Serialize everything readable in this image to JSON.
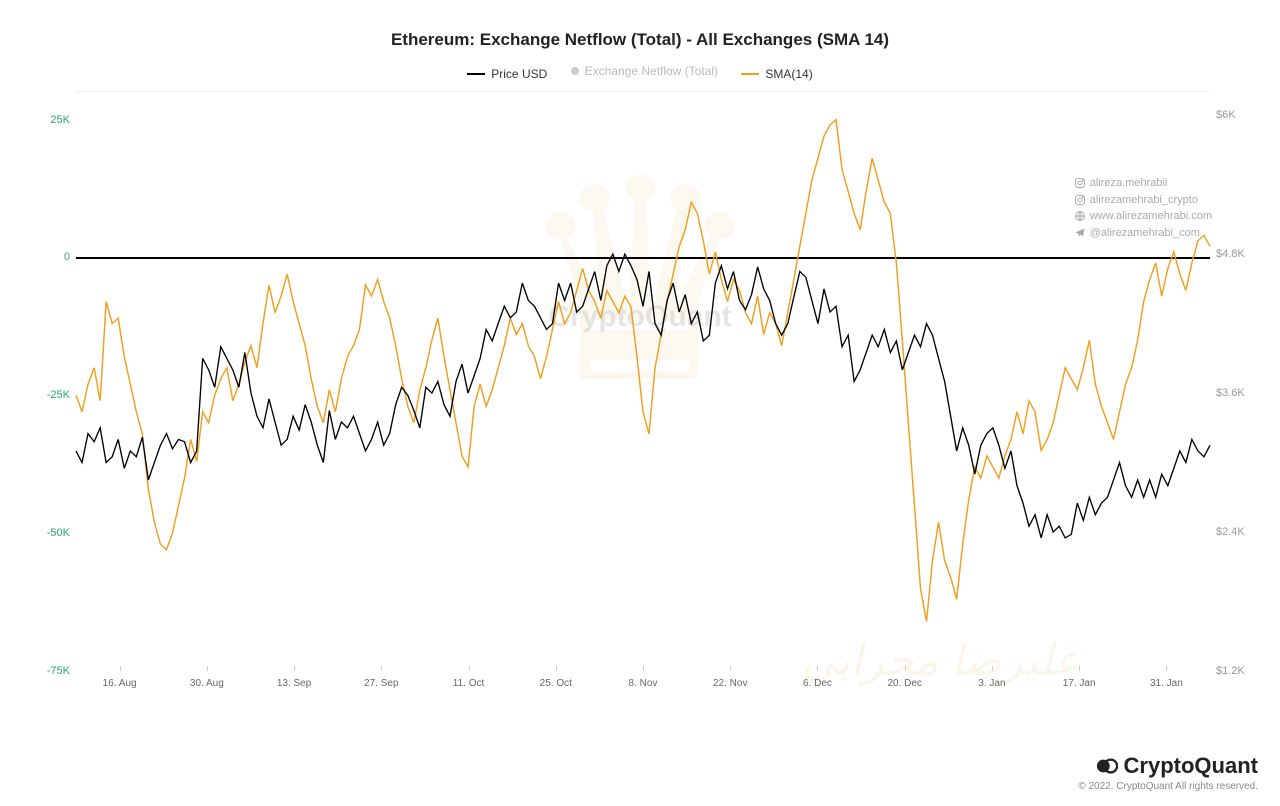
{
  "title": "Ethereum: Exchange Netflow (Total) - All Exchanges (SMA 14)",
  "legend": {
    "price": {
      "label": "Price USD",
      "color": "#000000"
    },
    "netflow": {
      "label": "Exchange Netflow (Total)",
      "color": "#cccccc"
    },
    "sma": {
      "label": "SMA(14)",
      "color": "#f0a020"
    }
  },
  "chart": {
    "type": "line",
    "background_color": "#ffffff",
    "grid_color": "#eeeeee",
    "left_axis": {
      "min": -75000,
      "max": 30000,
      "ticks": [
        {
          "v": 25000,
          "label": "25K",
          "color": "#2aa876"
        },
        {
          "v": 0,
          "label": "0",
          "color": "#2aa876"
        },
        {
          "v": -25000,
          "label": "-25K",
          "color": "#2aa876"
        },
        {
          "v": -50000,
          "label": "-50K",
          "color": "#2aa876"
        },
        {
          "v": -75000,
          "label": "-75K",
          "color": "#2aa876"
        }
      ]
    },
    "right_axis": {
      "min": 1200,
      "max": 6200,
      "ticks": [
        {
          "v": 6000,
          "label": "$6K"
        },
        {
          "v": 4800,
          "label": "$4.8K"
        },
        {
          "v": 3600,
          "label": "$3.6K"
        },
        {
          "v": 2400,
          "label": "$2.4K"
        },
        {
          "v": 1200,
          "label": "$1.2K"
        }
      ]
    },
    "x_labels": [
      "16. Aug",
      "30. Aug",
      "13. Sep",
      "27. Sep",
      "11. Oct",
      "25. Oct",
      "8. Nov",
      "22. Nov",
      "6. Dec",
      "20. Dec",
      "3. Jan",
      "17. Jan",
      "31. Jan"
    ],
    "x_domain": [
      0,
      188
    ],
    "zero_line_left_value": 0,
    "series": {
      "price": {
        "axis": "right",
        "color": "#000000",
        "stroke_width": 1.2,
        "data": [
          3100,
          3000,
          3250,
          3180,
          3300,
          3000,
          3050,
          3200,
          2950,
          3100,
          3050,
          3220,
          2850,
          3000,
          3150,
          3250,
          3120,
          3200,
          3180,
          3000,
          3100,
          3900,
          3800,
          3650,
          4000,
          3900,
          3800,
          3650,
          3950,
          3600,
          3400,
          3300,
          3550,
          3350,
          3150,
          3200,
          3400,
          3280,
          3500,
          3350,
          3150,
          3000,
          3450,
          3200,
          3350,
          3300,
          3400,
          3250,
          3100,
          3200,
          3350,
          3150,
          3250,
          3500,
          3650,
          3580,
          3450,
          3300,
          3650,
          3600,
          3700,
          3500,
          3400,
          3700,
          3850,
          3600,
          3750,
          3900,
          4150,
          4050,
          4200,
          4350,
          4250,
          4300,
          4550,
          4400,
          4350,
          4250,
          4150,
          4200,
          4550,
          4400,
          4550,
          4300,
          4350,
          4500,
          4650,
          4400,
          4700,
          4800,
          4650,
          4800,
          4700,
          4580,
          4350,
          4650,
          4200,
          4100,
          4400,
          4550,
          4300,
          4450,
          4200,
          4300,
          4050,
          4100,
          4550,
          4700,
          4500,
          4650,
          4400,
          4320,
          4450,
          4690,
          4500,
          4400,
          4200,
          4100,
          4200,
          4430,
          4650,
          4600,
          4400,
          4200,
          4500,
          4300,
          4350,
          4000,
          4100,
          3700,
          3800,
          3950,
          4100,
          4000,
          4150,
          3950,
          4050,
          3800,
          3950,
          4100,
          4000,
          4200,
          4100,
          3900,
          3700,
          3400,
          3100,
          3300,
          3150,
          2900,
          3150,
          3250,
          3300,
          3150,
          2950,
          3100,
          2800,
          2650,
          2450,
          2550,
          2350,
          2550,
          2400,
          2450,
          2350,
          2380,
          2650,
          2500,
          2700,
          2550,
          2650,
          2700,
          2850,
          3000,
          2800,
          2700,
          2850,
          2700,
          2850,
          2700,
          2900,
          2800,
          2950,
          3100,
          3000,
          3200,
          3100,
          3050,
          3150
        ]
      },
      "sma": {
        "axis": "left",
        "color": "#f0a020",
        "stroke_width": 1.3,
        "data": [
          -25000,
          -28000,
          -23000,
          -20000,
          -26000,
          -8000,
          -12000,
          -11000,
          -18000,
          -23000,
          -28000,
          -32000,
          -42000,
          -48000,
          -52000,
          -53000,
          -50000,
          -45000,
          -40000,
          -33000,
          -37000,
          -28000,
          -30000,
          -25000,
          -22000,
          -20000,
          -26000,
          -23000,
          -19000,
          -16000,
          -20000,
          -12000,
          -5000,
          -10000,
          -7000,
          -3000,
          -8000,
          -12000,
          -16000,
          -22000,
          -27000,
          -30000,
          -24000,
          -28000,
          -22000,
          -18000,
          -16000,
          -13000,
          -5000,
          -7000,
          -4000,
          -8000,
          -11000,
          -16000,
          -22000,
          -27000,
          -30000,
          -24000,
          -20000,
          -15000,
          -11000,
          -18000,
          -24000,
          -30000,
          -36000,
          -38000,
          -27000,
          -23000,
          -27000,
          -24000,
          -20000,
          -16000,
          -11000,
          -14000,
          -12000,
          -16000,
          -18000,
          -22000,
          -18000,
          -13000,
          -8000,
          -12000,
          -10000,
          -6000,
          -2000,
          -6000,
          -8000,
          -11000,
          -6000,
          -8000,
          -10000,
          -7000,
          -9000,
          -18000,
          -28000,
          -32000,
          -20000,
          -14000,
          -8000,
          -3000,
          2000,
          5000,
          10000,
          8000,
          3000,
          -3000,
          1000,
          -4000,
          -8000,
          -4000,
          -6000,
          -10000,
          -12000,
          -7000,
          -14000,
          -10000,
          -12000,
          -16000,
          -10000,
          -4000,
          2000,
          8000,
          14000,
          18000,
          22000,
          24000,
          25000,
          16000,
          12000,
          8000,
          5000,
          12000,
          18000,
          14000,
          10000,
          8000,
          -1000,
          -15000,
          -30000,
          -45000,
          -60000,
          -66000,
          -55000,
          -48000,
          -55000,
          -58000,
          -62000,
          -52000,
          -44000,
          -38000,
          -40000,
          -36000,
          -38000,
          -40000,
          -36000,
          -33000,
          -28000,
          -32000,
          -26000,
          -28000,
          -35000,
          -33000,
          -30000,
          -25000,
          -20000,
          -22000,
          -24000,
          -20000,
          -15000,
          -23000,
          -27000,
          -30000,
          -33000,
          -28000,
          -23000,
          -20000,
          -15000,
          -8000,
          -4000,
          -1000,
          -7000,
          -2000,
          1000,
          -3000,
          -6000,
          -1000,
          3000,
          4000,
          2000
        ]
      }
    }
  },
  "watermarks": {
    "center_text": "CryptoQuant",
    "crown_icon": "crown"
  },
  "socials": {
    "instagram1": "alireza.mehrabii",
    "instagram2": "alirezamehrabi_crypto",
    "web": "www.alirezamehrabi.com",
    "telegram": "@alirezamehrabi_com"
  },
  "footer": {
    "brand": "CryptoQuant",
    "copyright": "© 2022. CryptoQuant All rights reserved."
  }
}
